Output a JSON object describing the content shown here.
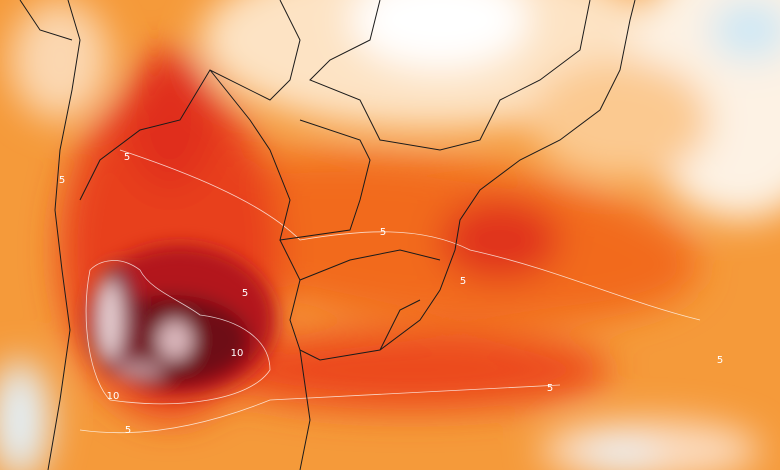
{
  "map": {
    "contour_labels": [
      5,
      5,
      5,
      5,
      5,
      5,
      5,
      5,
      10,
      10
    ]
  }
}
